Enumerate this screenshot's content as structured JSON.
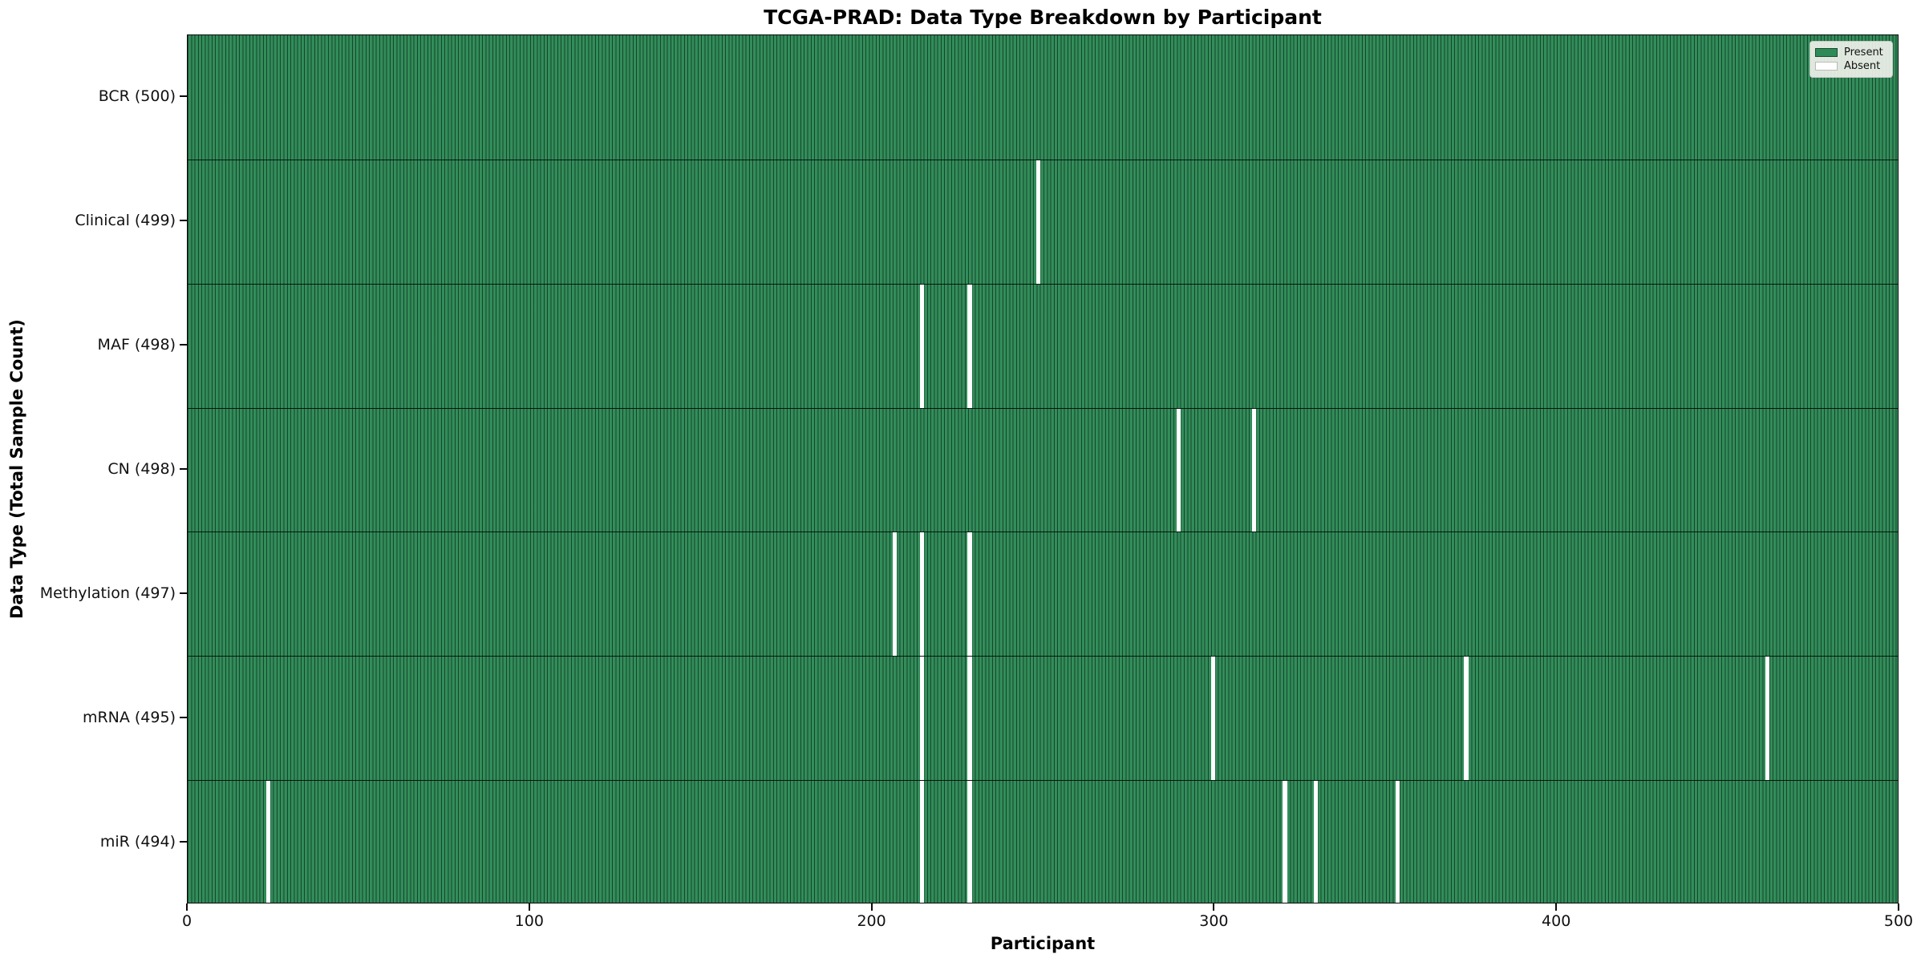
{
  "chart_data": {
    "type": "heatmap",
    "title": "TCGA-PRAD: Data Type Breakdown by Participant",
    "xlabel": "Participant",
    "ylabel": "Data Type (Total Sample Count)",
    "xlim": [
      0,
      500
    ],
    "x_ticks": [
      "0",
      "100",
      "200",
      "300",
      "400",
      "500"
    ],
    "x_tick_values": [
      0,
      100,
      200,
      300,
      400,
      500
    ],
    "n_participants": 500,
    "grid": false,
    "legend_position": "upper right",
    "colors": {
      "present": "#2e8b57",
      "absent": "#ffffff",
      "bar_edge": "#000000"
    },
    "legend": [
      {
        "label": "Present",
        "color": "#2e8b57"
      },
      {
        "label": "Absent",
        "color": "#ffffff"
      }
    ],
    "rows": [
      {
        "label": "BCR (500)",
        "data_type": "BCR",
        "total": 500,
        "absent_participants": []
      },
      {
        "label": "Clinical (499)",
        "data_type": "Clinical",
        "total": 499,
        "absent_participants": [
          248
        ]
      },
      {
        "label": "MAF (498)",
        "data_type": "MAF",
        "total": 498,
        "absent_participants": [
          214,
          228
        ]
      },
      {
        "label": "CN (498)",
        "data_type": "CN",
        "total": 498,
        "absent_participants": [
          289,
          311
        ]
      },
      {
        "label": "Methylation (497)",
        "data_type": "Methylation",
        "total": 497,
        "absent_participants": [
          206,
          214,
          228
        ]
      },
      {
        "label": "mRNA (495)",
        "data_type": "mRNA",
        "total": 495,
        "absent_participants": [
          214,
          228,
          299,
          373,
          461
        ]
      },
      {
        "label": "miR (494)",
        "data_type": "miR",
        "total": 494,
        "absent_participants": [
          23,
          214,
          228,
          320,
          329,
          353
        ]
      }
    ]
  }
}
